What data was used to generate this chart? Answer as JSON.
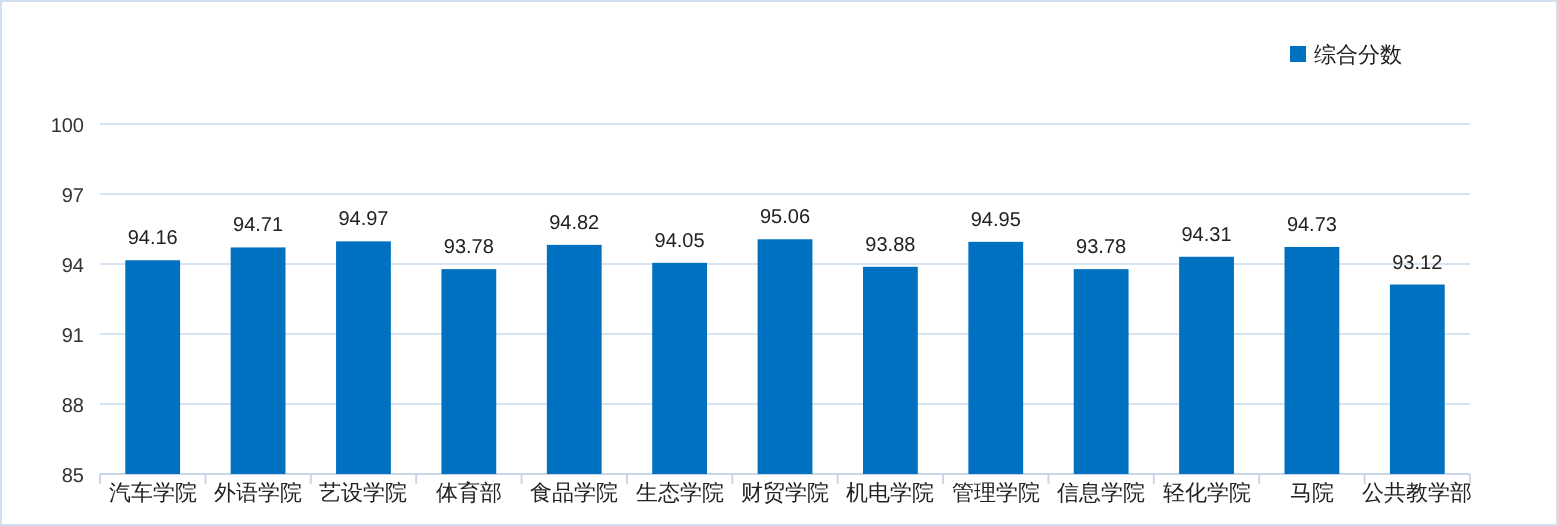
{
  "chart_data": {
    "type": "bar",
    "categories": [
      "汽车学院",
      "外语学院",
      "艺设学院",
      "体育部",
      "食品学院",
      "生态学院",
      "财贸学院",
      "机电学院",
      "管理学院",
      "信息学院",
      "轻化学院",
      "马院",
      "公共教学部"
    ],
    "series": [
      {
        "name": "综合分数",
        "color": "#0070c0",
        "values": [
          94.16,
          94.71,
          94.97,
          93.78,
          94.82,
          94.05,
          95.06,
          93.88,
          94.95,
          93.78,
          94.31,
          94.73,
          93.12
        ]
      }
    ],
    "data_labels": true,
    "ylim": [
      85,
      100
    ],
    "yticks": [
      85,
      88,
      91,
      94,
      97,
      100
    ],
    "grid": "y",
    "legend": "top right"
  }
}
